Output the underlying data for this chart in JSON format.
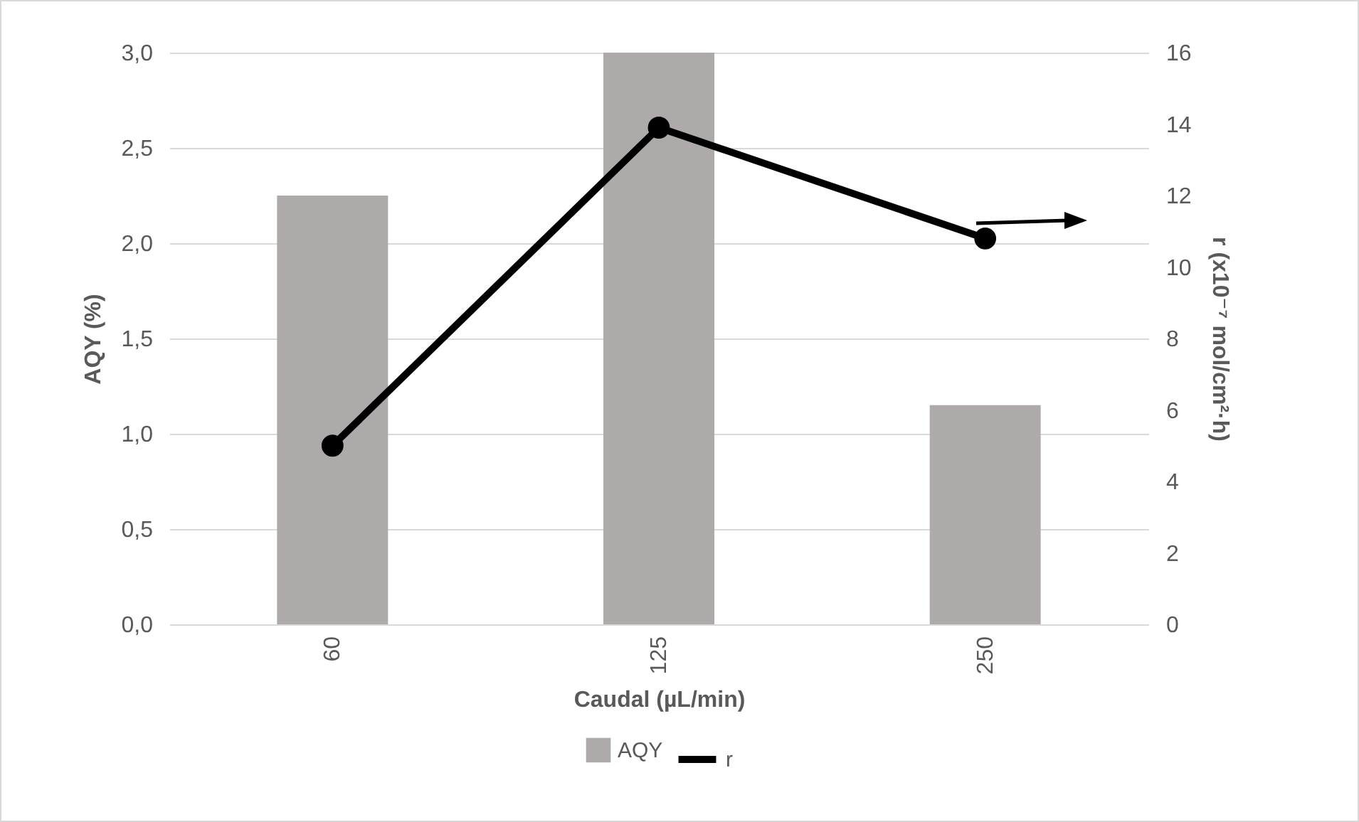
{
  "chart_data": {
    "type": "bar",
    "xlabel": "Caudal (µL/min)",
    "ylabel": "AQY (%)",
    "y2label": "r (x10⁻⁷ mol/cm²·h)",
    "categories": [
      "60",
      "125",
      "250"
    ],
    "series": [
      {
        "name": "AQY",
        "color": "#aeaaaa",
        "values": [
          2.25,
          3.0,
          1.15
        ]
      },
      {
        "name": "r",
        "type": "line",
        "axis": "y2",
        "color": "#000000",
        "values": [
          5.0,
          13.9,
          10.8
        ]
      }
    ],
    "ylim": [
      0,
      3
    ],
    "yticks": [
      {
        "value": 0,
        "label": "0,0"
      },
      {
        "value": 0.5,
        "label": "0,5"
      },
      {
        "value": 1,
        "label": "1,0"
      },
      {
        "value": 1.5,
        "label": "1,5"
      },
      {
        "value": 2,
        "label": "2,0"
      },
      {
        "value": 2.5,
        "label": "2,5"
      },
      {
        "value": 3,
        "label": "3,0"
      }
    ],
    "y2lim": [
      0,
      16
    ],
    "y2ticks": [
      0,
      2,
      4,
      6,
      8,
      10,
      12,
      14,
      16
    ],
    "grid": "y",
    "legend": "bottom",
    "marker": "circle",
    "line_style": "solid"
  }
}
